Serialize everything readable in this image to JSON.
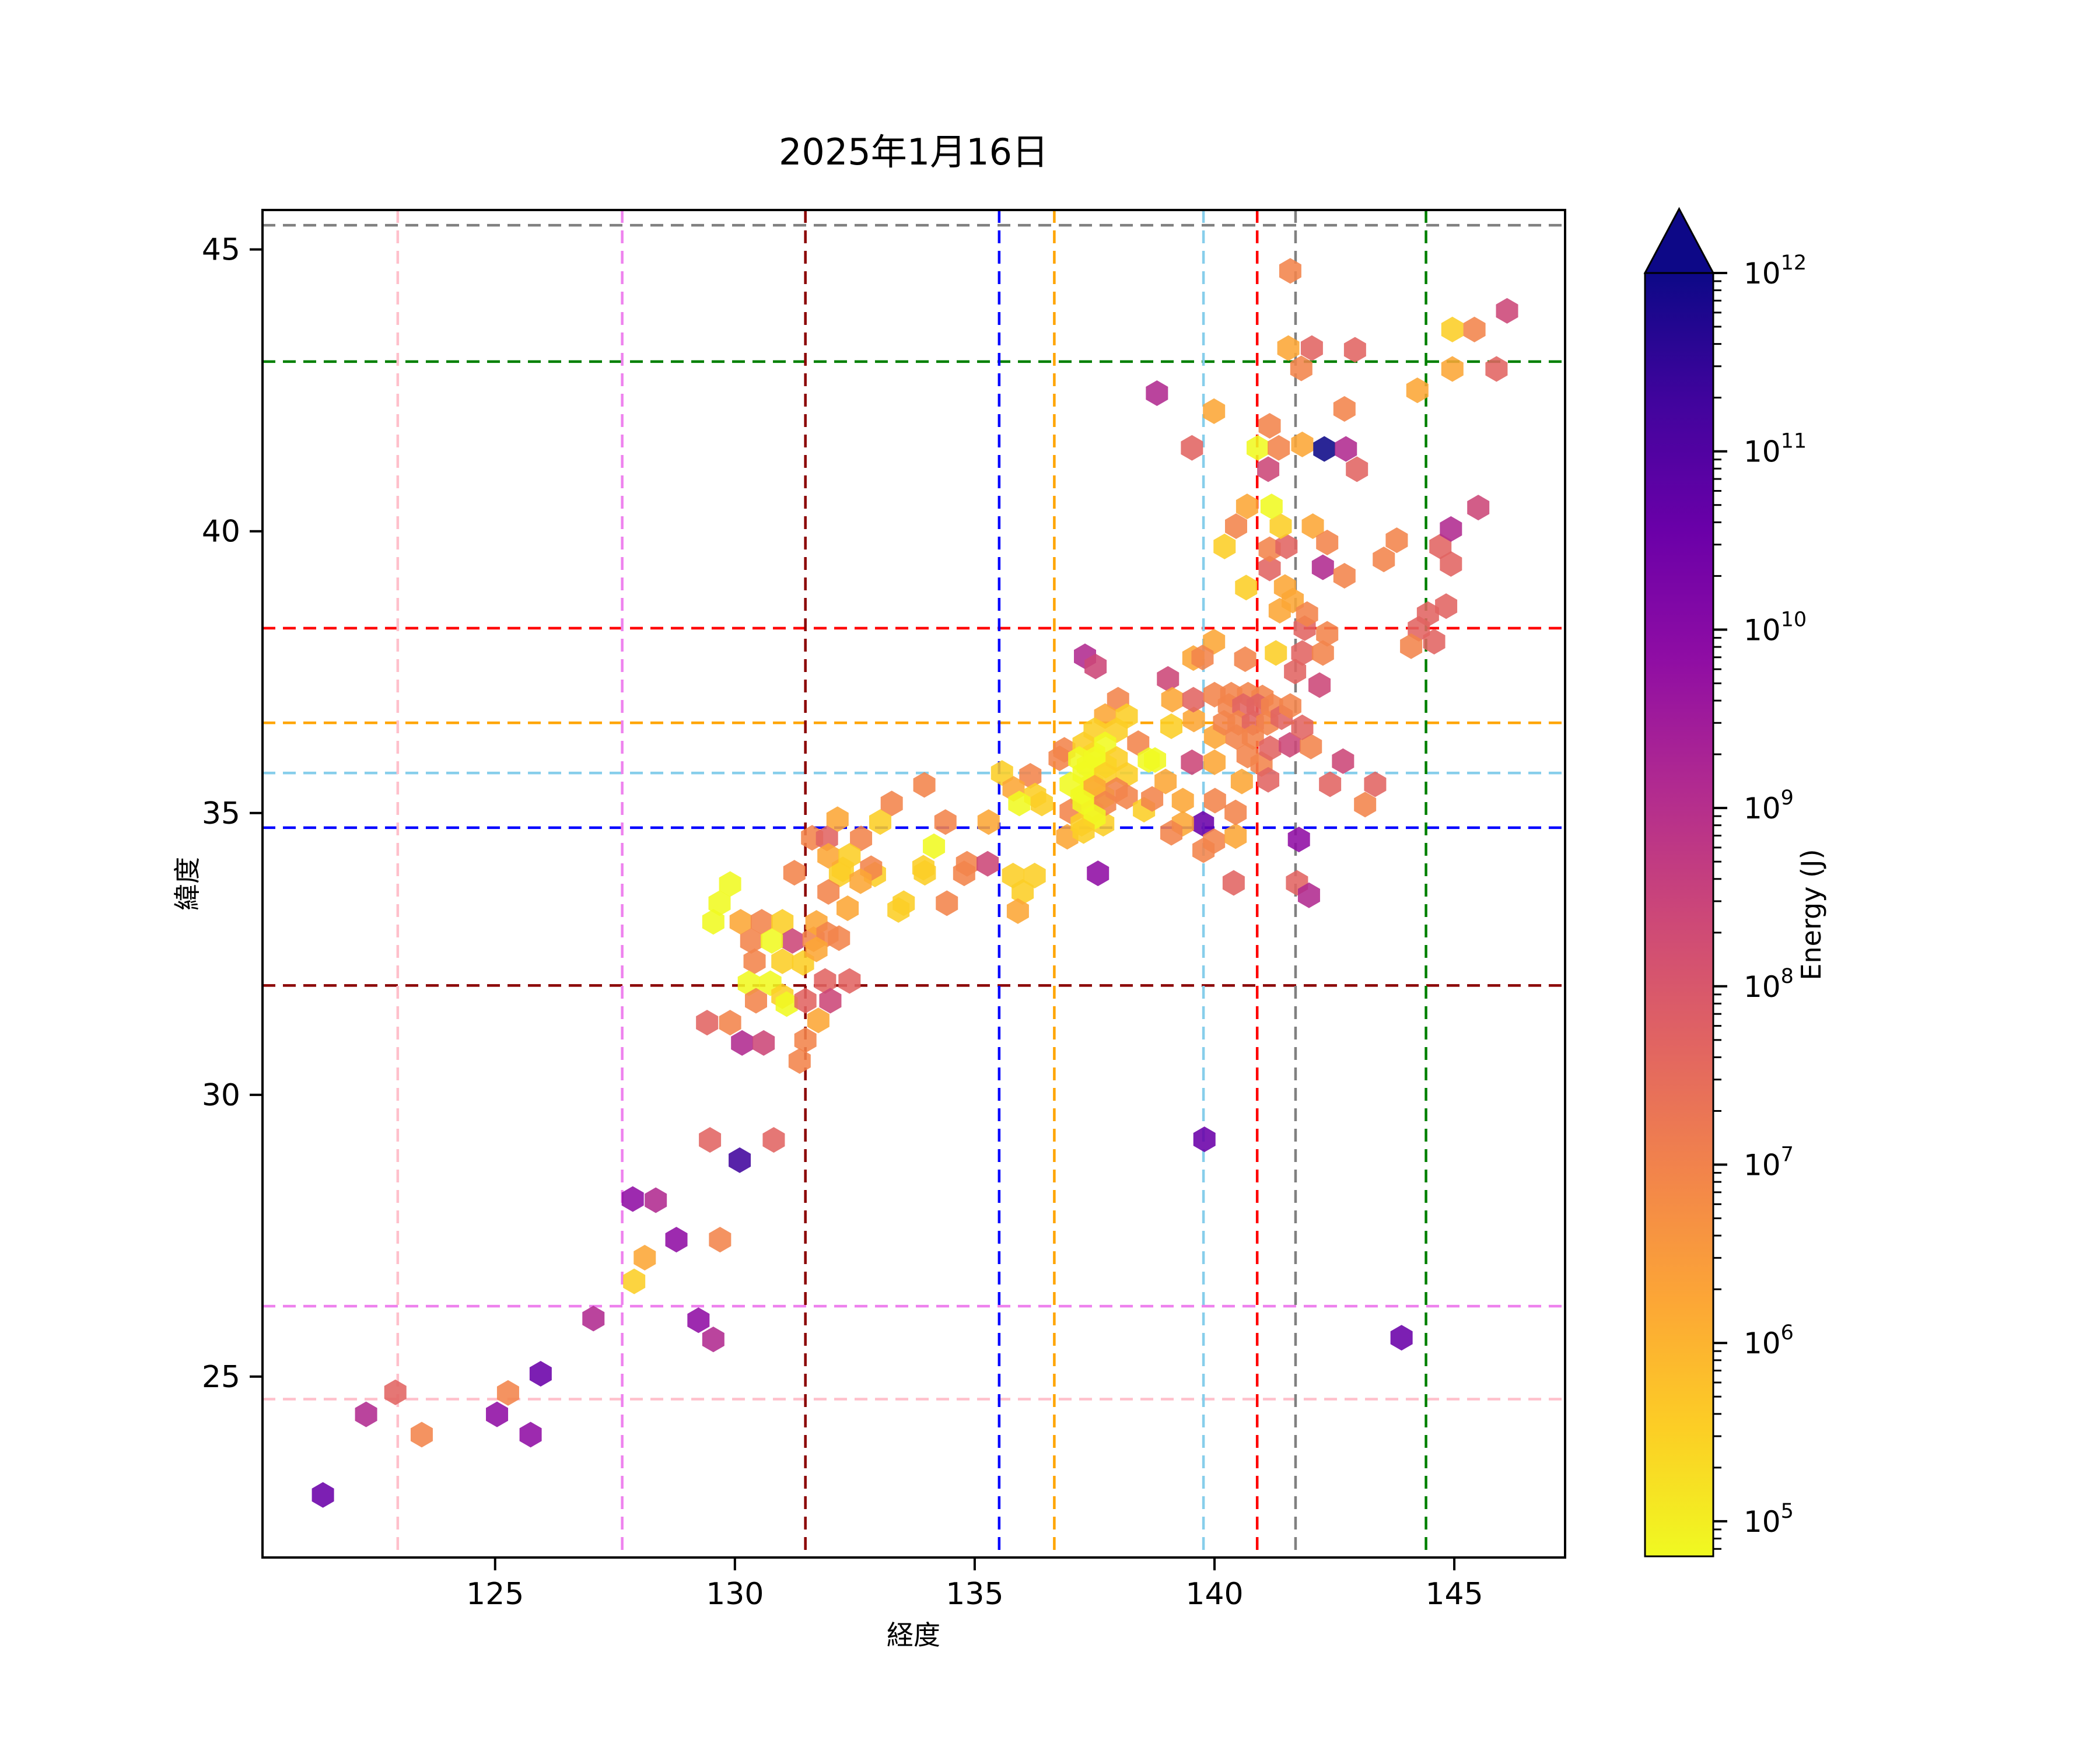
{
  "title": "2025年1月16日",
  "axes": {
    "xlabel": "経度",
    "ylabel": "緯度",
    "xticks": [
      125,
      130,
      135,
      140,
      145
    ],
    "yticks": [
      25,
      30,
      35,
      40,
      45
    ],
    "xlim": [
      120.15,
      147.31
    ],
    "ylim": [
      21.79,
      45.7
    ]
  },
  "colorbar": {
    "label": "Energy (J)",
    "scale": "log",
    "base_label": "10",
    "tick_exponents": [
      12,
      11,
      10,
      9,
      8,
      7,
      6,
      5
    ],
    "vmax_exp": 12,
    "vmin_exp": 4.8,
    "extend": "max",
    "colormap": "plasma_r"
  },
  "reference_lines": {
    "horizontal": [
      {
        "lat": 45.43,
        "color": "#808080"
      },
      {
        "lat": 43.01,
        "color": "#008000"
      },
      {
        "lat": 38.28,
        "color": "#ff0000"
      },
      {
        "lat": 36.6,
        "color": "#ffa500"
      },
      {
        "lat": 35.71,
        "color": "#87ceeb"
      },
      {
        "lat": 34.74,
        "color": "#0000ff"
      },
      {
        "lat": 31.94,
        "color": "#8b0000"
      },
      {
        "lat": 26.25,
        "color": "#ee82ee"
      },
      {
        "lat": 24.6,
        "color": "#ffc0cb"
      }
    ],
    "vertical": [
      {
        "lon": 122.97,
        "color": "#ffc0cb"
      },
      {
        "lon": 127.65,
        "color": "#ee82ee"
      },
      {
        "lon": 131.47,
        "color": "#8b0000"
      },
      {
        "lon": 135.51,
        "color": "#0000ff"
      },
      {
        "lon": 136.66,
        "color": "#ffa500"
      },
      {
        "lon": 139.77,
        "color": "#87ceeb"
      },
      {
        "lon": 140.89,
        "color": "#ff0000"
      },
      {
        "lon": 141.69,
        "color": "#808080"
      },
      {
        "lon": 144.41,
        "color": "#008000"
      }
    ]
  },
  "chart_data": {
    "type": "hexbin",
    "xlabel": "経度 (longitude)",
    "ylabel": "緯度 (latitude)",
    "x_range": [
      120.15,
      147.31
    ],
    "y_range": [
      21.79,
      45.7
    ],
    "value_label": "Energy (J)",
    "value_scale": "log10, 1e4.8 to 1e12",
    "palette": {
      "ye": {
        "hex": "#f0f921",
        "approx_energy_J": "1e5"
      },
      "go": {
        "hex": "#fcce25",
        "approx_energy_J": "4e5"
      },
      "am": {
        "hex": "#fca636",
        "approx_energy_J": "1.5e6"
      },
      "or": {
        "hex": "#f2844b",
        "approx_energy_J": "8e6"
      },
      "sa": {
        "hex": "#e16462",
        "approx_energy_J": "4e7"
      },
      "ro": {
        "hex": "#cc4778",
        "approx_energy_J": "2.5e8"
      },
      "ma": {
        "hex": "#b12a90",
        "approx_energy_J": "1.5e9"
      },
      "pu": {
        "hex": "#8f0da4",
        "approx_energy_J": "8e9"
      },
      "vi": {
        "hex": "#6a00a8",
        "approx_energy_J": "4e10"
      },
      "in": {
        "hex": "#41049d",
        "approx_energy_J": "2e11"
      },
      "na": {
        "hex": "#0d0887",
        "approx_energy_J": "1e12"
      }
    },
    "points": [
      [
        121.41,
        22.9,
        "vi"
      ],
      [
        122.92,
        24.72,
        "sa"
      ],
      [
        122.31,
        24.33,
        "ma"
      ],
      [
        123.47,
        23.97,
        "or"
      ],
      [
        125.27,
        24.71,
        "or"
      ],
      [
        125.04,
        24.33,
        "pu"
      ],
      [
        125.74,
        23.97,
        "pu"
      ],
      [
        125.95,
        25.05,
        "vi"
      ],
      [
        127.05,
        26.03,
        "ma"
      ],
      [
        129.55,
        25.66,
        "ma"
      ],
      [
        129.48,
        29.2,
        "sa"
      ],
      [
        130.1,
        28.84,
        "in"
      ],
      [
        130.81,
        29.2,
        "sa"
      ],
      [
        127.87,
        28.15,
        "pu"
      ],
      [
        128.35,
        28.13,
        "ma"
      ],
      [
        128.78,
        27.43,
        "pu"
      ],
      [
        129.69,
        27.43,
        "or"
      ],
      [
        128.12,
        27.11,
        "am"
      ],
      [
        127.9,
        26.69,
        "go"
      ],
      [
        129.24,
        26.0,
        "pu"
      ],
      [
        129.9,
        33.74,
        "ye"
      ],
      [
        129.68,
        33.4,
        "ye"
      ],
      [
        129.55,
        33.07,
        "ye"
      ],
      [
        130.12,
        33.07,
        "am"
      ],
      [
        130.56,
        33.07,
        "or"
      ],
      [
        130.99,
        33.07,
        "go"
      ],
      [
        131.2,
        32.73,
        "ro"
      ],
      [
        130.34,
        32.73,
        "or"
      ],
      [
        130.77,
        32.73,
        "ye"
      ],
      [
        131.64,
        32.76,
        "or"
      ],
      [
        132.17,
        32.78,
        "or"
      ],
      [
        130.41,
        32.37,
        "or"
      ],
      [
        130.99,
        32.37,
        "go"
      ],
      [
        131.42,
        32.34,
        "go"
      ],
      [
        130.29,
        31.98,
        "ye"
      ],
      [
        130.74,
        31.98,
        "ye"
      ],
      [
        130.99,
        31.75,
        "go"
      ],
      [
        130.44,
        31.67,
        "or"
      ],
      [
        131.08,
        31.61,
        "ye"
      ],
      [
        131.47,
        31.67,
        "sa"
      ],
      [
        131.88,
        32.02,
        "sa"
      ],
      [
        132.39,
        32.02,
        "sa"
      ],
      [
        131.99,
        31.67,
        "ro"
      ],
      [
        131.74,
        31.32,
        "am"
      ],
      [
        131.47,
        30.97,
        "or"
      ],
      [
        131.35,
        30.6,
        "or"
      ],
      [
        129.42,
        31.28,
        "sa"
      ],
      [
        129.9,
        31.28,
        "or"
      ],
      [
        130.15,
        30.92,
        "ma"
      ],
      [
        130.6,
        30.92,
        "ro"
      ],
      [
        133.52,
        33.4,
        "go"
      ],
      [
        134.42,
        33.4,
        "or"
      ],
      [
        131.24,
        33.94,
        "or"
      ],
      [
        132.25,
        34.0,
        "go"
      ],
      [
        132.92,
        33.91,
        "go"
      ],
      [
        133.96,
        33.94,
        "go"
      ],
      [
        134.78,
        33.93,
        "or"
      ],
      [
        133.95,
        35.5,
        "or"
      ],
      [
        133.27,
        35.17,
        "or"
      ],
      [
        132.14,
        34.89,
        "am"
      ],
      [
        133.03,
        34.84,
        "go"
      ],
      [
        134.39,
        34.84,
        "or"
      ],
      [
        135.29,
        34.84,
        "am"
      ],
      [
        131.61,
        34.56,
        "or"
      ],
      [
        131.92,
        34.55,
        "sa"
      ],
      [
        132.63,
        34.55,
        "or"
      ],
      [
        131.95,
        34.24,
        "am"
      ],
      [
        132.39,
        34.24,
        "go"
      ],
      [
        132.84,
        34.02,
        "or"
      ],
      [
        132.19,
        33.91,
        "go"
      ],
      [
        132.62,
        33.79,
        "am"
      ],
      [
        131.95,
        33.6,
        "or"
      ],
      [
        132.35,
        33.31,
        "am"
      ],
      [
        131.7,
        33.05,
        "am"
      ],
      [
        131.93,
        32.85,
        "or"
      ],
      [
        131.7,
        32.58,
        "am"
      ],
      [
        133.41,
        33.28,
        "go"
      ],
      [
        134.15,
        34.41,
        "ye"
      ],
      [
        133.93,
        34.03,
        "go"
      ],
      [
        134.84,
        34.1,
        "or"
      ],
      [
        135.27,
        34.1,
        "ro"
      ],
      [
        135.8,
        33.89,
        "go"
      ],
      [
        136.25,
        33.89,
        "go"
      ],
      [
        136.0,
        33.6,
        "go"
      ],
      [
        135.9,
        33.26,
        "am"
      ],
      [
        137.57,
        33.93,
        "pu"
      ],
      [
        136.93,
        34.58,
        "am"
      ],
      [
        135.57,
        35.71,
        "go"
      ],
      [
        136.16,
        35.66,
        "or"
      ],
      [
        135.81,
        35.43,
        "am"
      ],
      [
        136.26,
        35.31,
        "go"
      ],
      [
        135.93,
        35.17,
        "ye"
      ],
      [
        136.4,
        35.17,
        "go"
      ],
      [
        136.77,
        35.97,
        "or"
      ],
      [
        136.87,
        36.12,
        "or"
      ],
      [
        137.49,
        36.05,
        "ye"
      ],
      [
        137.36,
        35.84,
        "ye"
      ],
      [
        137.73,
        35.84,
        "ye"
      ],
      [
        137.0,
        35.51,
        "ye"
      ],
      [
        137.45,
        35.51,
        "ye"
      ],
      [
        137.23,
        35.29,
        "ye"
      ],
      [
        137.68,
        35.29,
        "ye"
      ],
      [
        137.0,
        35.03,
        "or"
      ],
      [
        137.45,
        35.03,
        "go"
      ],
      [
        137.23,
        34.81,
        "go"
      ],
      [
        137.68,
        34.81,
        "go"
      ],
      [
        137.99,
        37.01,
        "or"
      ],
      [
        137.72,
        36.72,
        "am"
      ],
      [
        138.17,
        36.72,
        "go"
      ],
      [
        137.5,
        36.47,
        "go"
      ],
      [
        137.96,
        36.47,
        "go"
      ],
      [
        138.41,
        36.24,
        "or"
      ],
      [
        137.27,
        36.22,
        "go"
      ],
      [
        137.72,
        36.22,
        "ye"
      ],
      [
        137.18,
        35.96,
        "ye"
      ],
      [
        137.5,
        35.96,
        "ye"
      ],
      [
        137.96,
        35.96,
        "go"
      ],
      [
        138.63,
        35.94,
        "ye"
      ],
      [
        137.27,
        35.7,
        "ye"
      ],
      [
        137.72,
        35.68,
        "go"
      ],
      [
        138.17,
        35.68,
        "go"
      ],
      [
        137.5,
        35.45,
        "am"
      ],
      [
        137.96,
        35.41,
        "or"
      ],
      [
        137.27,
        35.19,
        "ye"
      ],
      [
        137.72,
        35.17,
        "or"
      ],
      [
        138.17,
        35.29,
        "or"
      ],
      [
        137.5,
        34.93,
        "ye"
      ],
      [
        137.27,
        34.68,
        "go"
      ],
      [
        138.53,
        35.06,
        "go"
      ],
      [
        138.76,
        35.94,
        "ye"
      ],
      [
        139.1,
        36.54,
        "go"
      ],
      [
        139.57,
        36.66,
        "am"
      ],
      [
        140.01,
        36.36,
        "am"
      ],
      [
        139.53,
        35.9,
        "ro"
      ],
      [
        140.0,
        35.9,
        "am"
      ],
      [
        138.98,
        35.56,
        "am"
      ],
      [
        139.34,
        35.22,
        "am"
      ],
      [
        140.01,
        35.22,
        "or"
      ],
      [
        138.7,
        35.25,
        "or"
      ],
      [
        139.76,
        34.81,
        "vi"
      ],
      [
        139.34,
        34.81,
        "am"
      ],
      [
        139.1,
        34.65,
        "or"
      ],
      [
        139.99,
        34.5,
        "or"
      ],
      [
        139.77,
        34.34,
        "or"
      ],
      [
        140.44,
        34.59,
        "am"
      ],
      [
        140.44,
        35.01,
        "or"
      ],
      [
        140.69,
        36.02,
        "or"
      ],
      [
        140.98,
        35.87,
        "or"
      ],
      [
        141.12,
        35.59,
        "sa"
      ],
      [
        140.57,
        35.56,
        "am"
      ],
      [
        140.4,
        33.76,
        "sa"
      ],
      [
        141.76,
        34.53,
        "pu"
      ],
      [
        141.72,
        33.76,
        "sa"
      ],
      [
        141.97,
        33.54,
        "ma"
      ],
      [
        139.79,
        29.21,
        "vi"
      ],
      [
        143.9,
        25.69,
        "vi"
      ],
      [
        139.03,
        37.38,
        "ro"
      ],
      [
        139.12,
        37.01,
        "am"
      ],
      [
        139.56,
        37.01,
        "sa"
      ],
      [
        139.56,
        37.75,
        "am"
      ],
      [
        140.0,
        37.1,
        "or"
      ],
      [
        140.35,
        37.1,
        "or"
      ],
      [
        140.7,
        37.1,
        "or"
      ],
      [
        141.0,
        37.05,
        "or"
      ],
      [
        137.3,
        37.78,
        "ma"
      ],
      [
        137.52,
        37.6,
        "ro"
      ],
      [
        142.19,
        37.27,
        "ro"
      ],
      [
        141.68,
        37.51,
        "sa"
      ],
      [
        140.3,
        36.9,
        "or"
      ],
      [
        140.6,
        36.9,
        "sa"
      ],
      [
        140.9,
        36.9,
        "sa"
      ],
      [
        141.2,
        36.9,
        "or"
      ],
      [
        140.2,
        36.6,
        "or"
      ],
      [
        140.5,
        36.6,
        "or"
      ],
      [
        140.8,
        36.6,
        "sa"
      ],
      [
        141.1,
        36.6,
        "or"
      ],
      [
        141.4,
        36.7,
        "sa"
      ],
      [
        140.46,
        36.35,
        "or"
      ],
      [
        140.8,
        36.35,
        "or"
      ],
      [
        141.16,
        36.15,
        "sa"
      ],
      [
        141.57,
        36.21,
        "ro"
      ],
      [
        142.01,
        36.18,
        "or"
      ],
      [
        141.83,
        36.52,
        "sa"
      ],
      [
        141.58,
        36.9,
        "or"
      ],
      [
        142.68,
        35.92,
        "ro"
      ],
      [
        142.41,
        35.51,
        "sa"
      ],
      [
        143.35,
        35.51,
        "sa"
      ],
      [
        143.14,
        35.15,
        "or"
      ],
      [
        139.99,
        38.04,
        "am"
      ],
      [
        139.75,
        37.76,
        "or"
      ],
      [
        140.64,
        37.73,
        "or"
      ],
      [
        141.28,
        37.84,
        "go"
      ],
      [
        141.83,
        37.84,
        "sa"
      ],
      [
        141.88,
        38.28,
        "sa"
      ],
      [
        142.35,
        38.18,
        "or"
      ],
      [
        142.26,
        37.84,
        "or"
      ],
      [
        144.26,
        38.27,
        "sa"
      ],
      [
        144.45,
        38.53,
        "sa"
      ],
      [
        144.83,
        38.67,
        "sa"
      ],
      [
        144.58,
        38.04,
        "sa"
      ],
      [
        144.1,
        37.96,
        "or"
      ],
      [
        141.63,
        38.77,
        "am"
      ],
      [
        141.93,
        38.53,
        "or"
      ],
      [
        141.36,
        38.59,
        "am"
      ],
      [
        140.66,
        39.0,
        "go"
      ],
      [
        141.47,
        39.01,
        "am"
      ],
      [
        141.15,
        39.34,
        "sa"
      ],
      [
        142.26,
        39.36,
        "ma"
      ],
      [
        142.71,
        39.21,
        "or"
      ],
      [
        140.21,
        39.73,
        "go"
      ],
      [
        141.15,
        39.68,
        "or"
      ],
      [
        141.5,
        39.73,
        "sa"
      ],
      [
        140.45,
        40.09,
        "or"
      ],
      [
        141.38,
        40.09,
        "go"
      ],
      [
        142.05,
        40.09,
        "am"
      ],
      [
        142.35,
        39.8,
        "or"
      ],
      [
        140.68,
        40.44,
        "am"
      ],
      [
        141.19,
        40.44,
        "ye"
      ],
      [
        143.8,
        39.84,
        "or"
      ],
      [
        143.53,
        39.5,
        "or"
      ],
      [
        144.71,
        39.73,
        "sa"
      ],
      [
        144.93,
        39.42,
        "sa"
      ],
      [
        144.93,
        40.04,
        "ma"
      ],
      [
        145.5,
        40.42,
        "ro"
      ],
      [
        139.53,
        41.48,
        "sa"
      ],
      [
        140.9,
        41.48,
        "ye"
      ],
      [
        141.34,
        41.48,
        "or"
      ],
      [
        141.15,
        41.87,
        "or"
      ],
      [
        141.83,
        41.54,
        "am"
      ],
      [
        142.29,
        41.46,
        "na"
      ],
      [
        142.74,
        41.46,
        "ma"
      ],
      [
        142.97,
        41.1,
        "sa"
      ],
      [
        141.12,
        41.1,
        "ro"
      ],
      [
        139.99,
        42.13,
        "am"
      ],
      [
        138.8,
        42.45,
        "ma"
      ],
      [
        141.58,
        44.62,
        "or"
      ],
      [
        146.1,
        43.91,
        "ro"
      ],
      [
        144.96,
        43.58,
        "go"
      ],
      [
        145.42,
        43.58,
        "or"
      ],
      [
        141.54,
        43.25,
        "am"
      ],
      [
        142.03,
        43.25,
        "sa"
      ],
      [
        142.93,
        43.22,
        "sa"
      ],
      [
        141.81,
        42.89,
        "or"
      ],
      [
        144.96,
        42.88,
        "am"
      ],
      [
        145.88,
        42.88,
        "sa"
      ],
      [
        144.23,
        42.5,
        "am"
      ],
      [
        142.71,
        42.17,
        "or"
      ]
    ]
  }
}
